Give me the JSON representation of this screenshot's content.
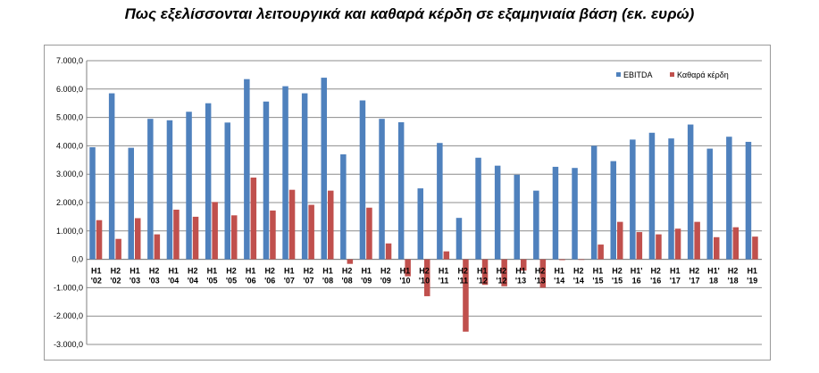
{
  "title": "Πως εξελίσσονται λειτουργικά και καθαρά κέρδη σε εξαμηνιαία βάση (εκ. ευρώ)",
  "chart_data": {
    "type": "bar",
    "title": "Πως εξελίσσονται λειτουργικά και καθαρά κέρδη σε εξαμηνιαία βάση (εκ. ευρώ)",
    "ylim": [
      -3000,
      7000
    ],
    "yticks": [
      "-3.000,0",
      "-2.000,0",
      "-1.000,0",
      "0,0",
      "1.000,0",
      "2.000,0",
      "3.000,0",
      "4.000,0",
      "5.000,0",
      "6.000,0",
      "7.000,0"
    ],
    "ytick_values": [
      -3000,
      -2000,
      -1000,
      0,
      1000,
      2000,
      3000,
      4000,
      5000,
      6000,
      7000
    ],
    "grid": true,
    "legend_position": "top-right",
    "categories": [
      [
        "H1",
        "'02"
      ],
      [
        "H2",
        "'02"
      ],
      [
        "H1",
        "'03"
      ],
      [
        "H2",
        "'03"
      ],
      [
        "H1",
        "'04"
      ],
      [
        "H2",
        "'04"
      ],
      [
        "H1",
        "'05"
      ],
      [
        "H2",
        "'05"
      ],
      [
        "H1",
        "'06"
      ],
      [
        "H2",
        "'06"
      ],
      [
        "H1",
        "'07"
      ],
      [
        "H2",
        "'07"
      ],
      [
        "H1",
        "'08"
      ],
      [
        "H2",
        "'08"
      ],
      [
        "H1",
        "'09"
      ],
      [
        "H2",
        "'09"
      ],
      [
        "H1",
        "'10"
      ],
      [
        "H2",
        "'10"
      ],
      [
        "H1",
        "'11"
      ],
      [
        "H2",
        "'11"
      ],
      [
        "H1",
        "'12"
      ],
      [
        "H2",
        "'12"
      ],
      [
        "H1",
        "'13"
      ],
      [
        "H2",
        "'13"
      ],
      [
        "H1",
        "'14"
      ],
      [
        "H2",
        "'14"
      ],
      [
        "H1",
        "'15"
      ],
      [
        "H2",
        "'15"
      ],
      [
        "H1'",
        "16"
      ],
      [
        "H2",
        "'16"
      ],
      [
        "H1",
        "'17"
      ],
      [
        "H2",
        "'17"
      ],
      [
        "H1'",
        "18"
      ],
      [
        "H2",
        "'18"
      ],
      [
        "H1",
        "'19"
      ]
    ],
    "series": [
      {
        "name": "EBITDA",
        "color": "#4f81bd",
        "values": [
          3950,
          5850,
          3930,
          4950,
          4900,
          5200,
          5500,
          4820,
          6350,
          5560,
          6100,
          5850,
          6400,
          3700,
          5600,
          4950,
          4830,
          2500,
          4100,
          1460,
          3580,
          3300,
          2980,
          2420,
          3260,
          3220,
          4000,
          3460,
          4220,
          4460,
          4260,
          4750,
          3900,
          4320,
          4140
        ]
      },
      {
        "name": "Καθαρά κέρδη",
        "color": "#c0504d",
        "values": [
          1380,
          720,
          1450,
          880,
          1750,
          1500,
          2020,
          1550,
          2880,
          1720,
          2450,
          1920,
          2420,
          -160,
          1820,
          560,
          -600,
          -1300,
          280,
          -2550,
          -900,
          -950,
          -400,
          -1000,
          -30,
          -20,
          520,
          1320,
          960,
          880,
          1080,
          1320,
          780,
          1130,
          800
        ]
      }
    ]
  }
}
